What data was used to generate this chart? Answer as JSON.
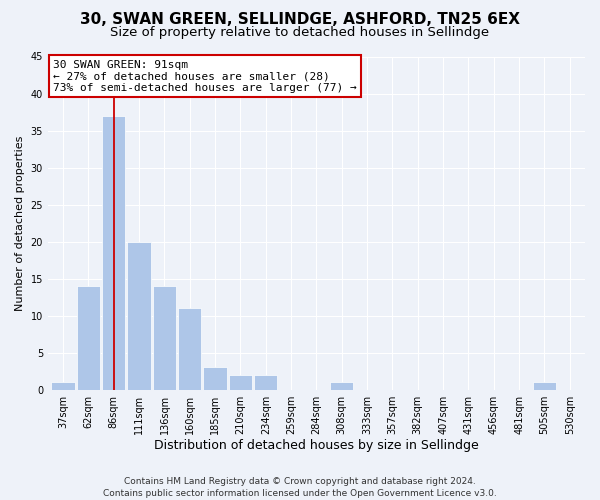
{
  "title": "30, SWAN GREEN, SELLINDGE, ASHFORD, TN25 6EX",
  "subtitle": "Size of property relative to detached houses in Sellindge",
  "xlabel": "Distribution of detached houses by size in Sellindge",
  "ylabel": "Number of detached properties",
  "bar_labels": [
    "37sqm",
    "62sqm",
    "86sqm",
    "111sqm",
    "136sqm",
    "160sqm",
    "185sqm",
    "210sqm",
    "234sqm",
    "259sqm",
    "284sqm",
    "308sqm",
    "333sqm",
    "357sqm",
    "382sqm",
    "407sqm",
    "431sqm",
    "456sqm",
    "481sqm",
    "505sqm",
    "530sqm"
  ],
  "bar_values": [
    1,
    14,
    37,
    20,
    14,
    11,
    3,
    2,
    2,
    0,
    0,
    1,
    0,
    0,
    0,
    0,
    0,
    0,
    0,
    1,
    0
  ],
  "bar_color": "#aec6e8",
  "vline_color": "#cc0000",
  "vline_index": 2,
  "ylim": [
    0,
    45
  ],
  "yticks": [
    0,
    5,
    10,
    15,
    20,
    25,
    30,
    35,
    40,
    45
  ],
  "annotation_title": "30 SWAN GREEN: 91sqm",
  "annotation_line1": "← 27% of detached houses are smaller (28)",
  "annotation_line2": "73% of semi-detached houses are larger (77) →",
  "annotation_box_facecolor": "#ffffff",
  "annotation_box_edgecolor": "#cc0000",
  "footer1": "Contains HM Land Registry data © Crown copyright and database right 2024.",
  "footer2": "Contains public sector information licensed under the Open Government Licence v3.0.",
  "bg_color": "#eef2f9",
  "plot_bg_color": "#eef2f9",
  "title_fontsize": 11,
  "subtitle_fontsize": 9.5,
  "xlabel_fontsize": 9,
  "ylabel_fontsize": 8,
  "tick_fontsize": 7,
  "annotation_fontsize": 8,
  "footer_fontsize": 6.5
}
